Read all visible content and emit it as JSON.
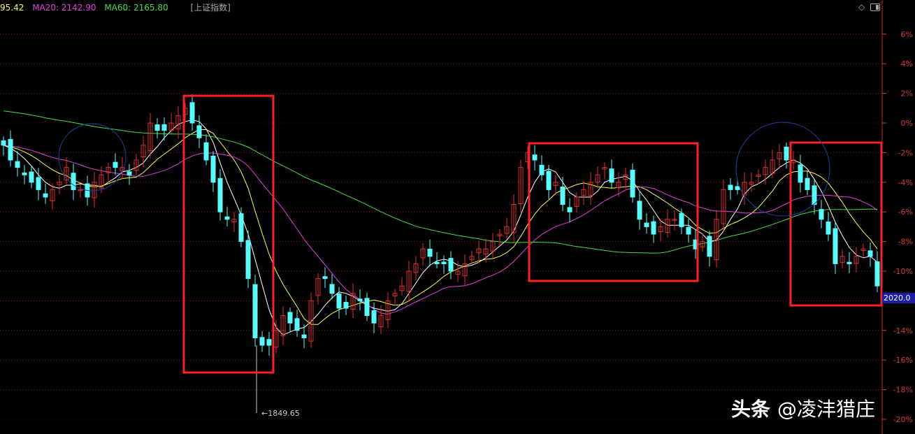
{
  "header": {
    "ma5_value": "95.42",
    "ma20": "MA20: 2142.90",
    "ma60": "MA60: 2165.80",
    "index_name": "[上证指数]",
    "colors": {
      "ma5": "#ffff40",
      "ma20": "#e040e0",
      "ma60": "#40e040"
    }
  },
  "toolbar_icons": [
    "diamond-icon",
    "panel-toggle-icon"
  ],
  "price_tag": "2020.0",
  "low_annotation": "←1849.65",
  "watermark": {
    "brand": "头条",
    "handle": "@凌沣猎庄"
  },
  "chart_data": {
    "type": "candlestick",
    "ylabel_unit": "%",
    "ylim": [
      -20.5,
      7.5
    ],
    "y_ticks": [
      "6%",
      "4%",
      "2%",
      "0%",
      "-2%",
      "-4%",
      "-6%",
      "-8%",
      "-10%",
      "-12%",
      "-14%",
      "-16%",
      "-18%",
      "-20%"
    ],
    "y_tick_values": [
      6,
      4,
      2,
      0,
      -2,
      -4,
      -6,
      -8,
      -10,
      -12,
      -14,
      -16,
      -18,
      -20
    ],
    "grid": true,
    "closes_pct": [
      -1.5,
      -2.5,
      -3,
      -3.5,
      -4,
      -4.5,
      -5,
      -4.5,
      -4,
      -3,
      -4.5,
      -4.5,
      -5,
      -4,
      -3.5,
      -3,
      -3,
      -3,
      -3.5,
      -2.5,
      -1.5,
      0,
      -0.5,
      -0.5,
      0,
      0.5,
      1,
      0,
      -1,
      -2.5,
      -4,
      -6,
      -6.5,
      -6.5,
      -8,
      -10.5,
      -14.5,
      -15,
      -15,
      -14,
      -13,
      -13.5,
      -14,
      -14.5,
      -12,
      -10.5,
      -10.5,
      -11.5,
      -12.5,
      -12.5,
      -11.5,
      -12,
      -13,
      -13.5,
      -13,
      -12,
      -11.5,
      -11,
      -10,
      -9.5,
      -8.5,
      -9,
      -9.5,
      -9.5,
      -10,
      -10,
      -9.5,
      -9,
      -8.5,
      -8.5,
      -8,
      -7.5,
      -7,
      -5.5,
      -3,
      -2,
      -2.5,
      -3.5,
      -4.5,
      -4,
      -5.5,
      -6,
      -5,
      -4.5,
      -4,
      -3.5,
      -3,
      -4,
      -4,
      -3.5,
      -5,
      -6.5,
      -7,
      -7.5,
      -7,
      -6.5,
      -6.5,
      -7,
      -7.5,
      -8.5,
      -8,
      -9,
      -6.5,
      -4.5,
      -4.5,
      -4.5,
      -4,
      -4,
      -3.5,
      -3,
      -2.5,
      -2,
      -2.5,
      -2.5,
      -4,
      -4.5,
      -5.5,
      -6.5,
      -7.5,
      -9.5,
      -9,
      -9.5,
      -9,
      -8.5,
      -9,
      -11
    ],
    "moving_averages": [
      {
        "name": "MA5",
        "period": 5,
        "color": "#ffffff"
      },
      {
        "name": "MA10",
        "period": 10,
        "color": "#ffff40"
      },
      {
        "name": "MA20",
        "period": 20,
        "color": "#e040e0"
      },
      {
        "name": "MA60",
        "period": 60,
        "color": "#40e040"
      }
    ],
    "up_color": "#e03030",
    "down_color": "#54ffff",
    "highlight_color": "#ff2020",
    "circle_color": "#2040a0",
    "annotations": [
      "←1849.65",
      "2020.0"
    ]
  }
}
